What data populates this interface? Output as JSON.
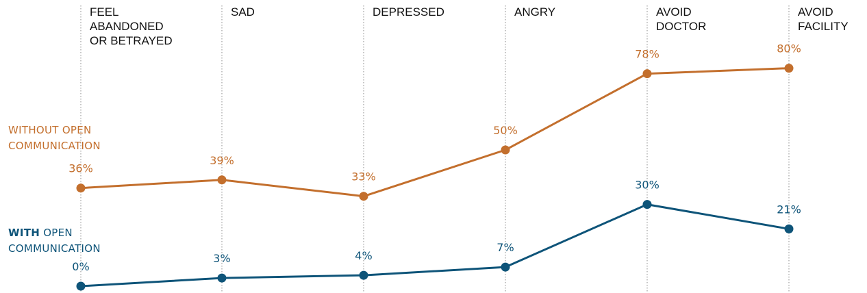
{
  "chart_data": {
    "type": "line",
    "categories": [
      [
        "FEEL",
        "ABANDONED",
        "OR BETRAYED"
      ],
      [
        "SAD"
      ],
      [
        "DEPRESSED"
      ],
      [
        "ANGRY"
      ],
      [
        "AVOID",
        "DOCTOR"
      ],
      [
        "AVOID",
        "FACILITY"
      ]
    ],
    "series": [
      {
        "legend_lines": [
          [
            "WITHOUT OPEN"
          ],
          [
            "COMMUNICATION"
          ]
        ],
        "values": [
          36,
          39,
          33,
          50,
          78,
          80
        ],
        "labels": [
          "36%",
          "39%",
          "33%",
          "50%",
          "78%",
          "80%"
        ],
        "color": "#c36f2d"
      },
      {
        "legend_lines": [
          [
            "WITH",
            " OPEN"
          ],
          [
            "COMMUNICATION"
          ]
        ],
        "legend_bold_first": true,
        "values": [
          0,
          3,
          4,
          7,
          30,
          21
        ],
        "labels": [
          "0%",
          "3%",
          "4%",
          "7%",
          "30%",
          "21%"
        ],
        "color": "#0e5479"
      }
    ],
    "ylim": [
      0,
      100
    ],
    "grid": false,
    "legend_placement": "left"
  }
}
